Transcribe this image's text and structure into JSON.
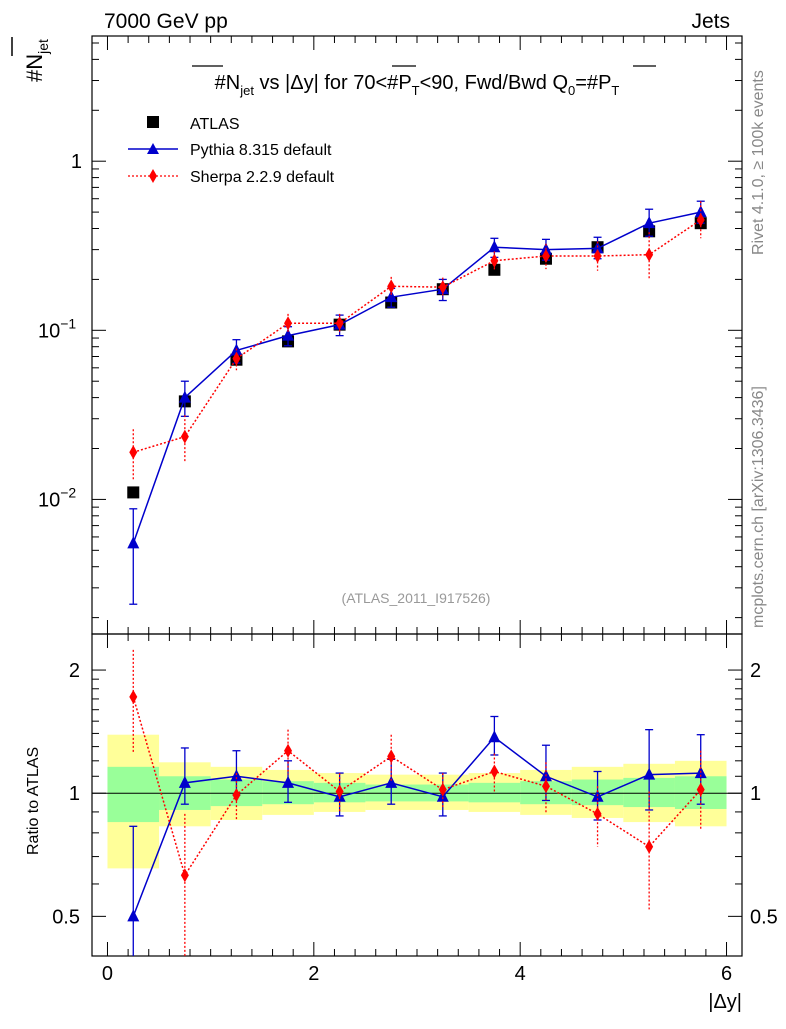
{
  "header": {
    "energy": "7000 GeV pp",
    "process": "Jets"
  },
  "side_labels": {
    "rivet": "Rivet 4.1.0, ≥ 100k events",
    "mcplots": "mcplots.cern.ch [arXiv:1306.3436]"
  },
  "watermark": "(ATLAS_2011_I917526)",
  "chart_data": [
    {
      "type": "scatter",
      "panel": "main",
      "title": "#N_jet vs |Δy| for 70<#P_T<90, Fwd/Bwd Q_0=#P_T",
      "title_parts": {
        "a": "#",
        "b": "N",
        "c": "jet",
        "d": " vs |Δy| for 70<#",
        "e": "P",
        "f": "T",
        "g": "<90, Fwd/Bwd Q",
        "h": "0",
        "i": "=#",
        "j": "P",
        "k": "T"
      },
      "ylabel": {
        "prefix": "#",
        "main": "N",
        "sub": "jet"
      },
      "yscale": "log",
      "ylim": [
        0.0016,
        5.5
      ],
      "xlim": [
        -0.15,
        6.15
      ],
      "yticks": [
        {
          "value": 0.01,
          "base": "10",
          "exp": "−2"
        },
        {
          "value": 0.1,
          "base": "10",
          "exp": "−1"
        },
        {
          "value": 1,
          "base": "1",
          "exp": ""
        }
      ],
      "legend_position": "top-left",
      "x": [
        0.25,
        0.75,
        1.25,
        1.75,
        2.25,
        2.75,
        3.25,
        3.75,
        4.25,
        4.75,
        5.25,
        5.75
      ],
      "series": [
        {
          "name": "ATLAS",
          "color": "#000000",
          "marker": "square",
          "values": [
            0.011,
            0.038,
            0.067,
            0.086,
            0.108,
            0.146,
            0.175,
            0.228,
            0.265,
            0.31,
            0.385,
            0.43
          ],
          "err_lo": [
            0,
            0,
            0,
            0,
            0,
            0,
            0,
            0,
            0,
            0,
            0,
            0
          ],
          "err_hi": [
            0,
            0,
            0,
            0,
            0,
            0,
            0,
            0,
            0,
            0,
            0,
            0
          ]
        },
        {
          "name": "Pythia 8.315 default",
          "color": "#0000cc",
          "marker": "triangle",
          "line": "solid",
          "values": [
            0.0055,
            0.04,
            0.076,
            0.093,
            0.108,
            0.157,
            0.175,
            0.31,
            0.3,
            0.305,
            0.43,
            0.5
          ],
          "err_lo": [
            0.0031,
            0.009,
            0.012,
            0.012,
            0.015,
            0.02,
            0.025,
            0.04,
            0.04,
            0.04,
            0.07,
            0.07
          ],
          "err_hi": [
            0.0033,
            0.01,
            0.012,
            0.012,
            0.015,
            0.02,
            0.025,
            0.04,
            0.045,
            0.05,
            0.09,
            0.08
          ]
        },
        {
          "name": "Sherpa 2.2.9 default",
          "color": "#ff0000",
          "marker": "diamond",
          "line": "dotted",
          "values": [
            0.019,
            0.0235,
            0.068,
            0.11,
            0.11,
            0.182,
            0.18,
            0.258,
            0.275,
            0.275,
            0.28,
            0.45
          ],
          "err_lo": [
            0.006,
            0.007,
            0.01,
            0.015,
            0.015,
            0.025,
            0.025,
            0.035,
            0.045,
            0.05,
            0.08,
            0.1
          ],
          "err_hi": [
            0.007,
            0.008,
            0.01,
            0.015,
            0.015,
            0.025,
            0.025,
            0.035,
            0.05,
            0.06,
            0.1,
            0.13
          ]
        }
      ]
    },
    {
      "type": "scatter",
      "panel": "ratio",
      "ylabel": "Ratio to ATLAS",
      "xlabel": "|Δy|",
      "yscale": "log",
      "ylim": [
        0.4,
        2.45
      ],
      "xlim": [
        -0.15,
        6.15
      ],
      "yticks": [
        0.5,
        1,
        2
      ],
      "ytick_labels": [
        "0.5",
        "1",
        "2"
      ],
      "xticks": [
        0,
        2,
        4,
        6
      ],
      "xtick_labels": [
        "0",
        "2",
        "4",
        "6"
      ],
      "x": [
        0.25,
        0.75,
        1.25,
        1.75,
        2.25,
        2.75,
        3.25,
        3.75,
        4.25,
        4.75,
        5.25,
        5.75
      ],
      "bands": {
        "bins": [
          [
            0,
            0.5
          ],
          [
            0.5,
            1
          ],
          [
            1,
            1.5
          ],
          [
            1.5,
            2
          ],
          [
            2,
            2.5
          ],
          [
            2.5,
            3
          ],
          [
            3,
            3.5
          ],
          [
            3.5,
            4
          ],
          [
            4,
            4.5
          ],
          [
            4.5,
            5
          ],
          [
            5,
            5.5
          ],
          [
            5.5,
            6
          ]
        ],
        "outer": {
          "color": "#ffff99",
          "lo": [
            0.655,
            0.83,
            0.86,
            0.885,
            0.9,
            0.91,
            0.91,
            0.9,
            0.885,
            0.87,
            0.85,
            0.83
          ],
          "hi": [
            1.39,
            1.19,
            1.16,
            1.14,
            1.12,
            1.11,
            1.11,
            1.12,
            1.14,
            1.16,
            1.18,
            1.2
          ]
        },
        "inner": {
          "color": "#99ff99",
          "lo": [
            0.85,
            0.91,
            0.93,
            0.94,
            0.95,
            0.955,
            0.955,
            0.95,
            0.94,
            0.935,
            0.925,
            0.915
          ],
          "hi": [
            1.16,
            1.1,
            1.08,
            1.07,
            1.06,
            1.05,
            1.05,
            1.06,
            1.07,
            1.08,
            1.09,
            1.1
          ]
        }
      },
      "series": [
        {
          "name": "Pythia 8.315 default",
          "color": "#0000cc",
          "marker": "triangle",
          "line": "solid",
          "values": [
            0.5,
            1.06,
            1.1,
            1.06,
            0.98,
            1.06,
            0.98,
            1.37,
            1.1,
            0.98,
            1.11,
            1.12
          ],
          "err_lo": [
            0.13,
            0.12,
            0.11,
            0.11,
            0.1,
            0.12,
            0.1,
            0.13,
            0.14,
            0.12,
            0.2,
            0.18
          ],
          "err_hi": [
            0.33,
            0.23,
            0.17,
            0.14,
            0.14,
            0.15,
            0.14,
            0.17,
            0.21,
            0.15,
            0.32,
            0.27
          ]
        },
        {
          "name": "Sherpa 2.2.9 default",
          "color": "#ff0000",
          "marker": "diamond",
          "line": "dotted",
          "values": [
            1.72,
            0.63,
            0.99,
            1.27,
            1.01,
            1.23,
            1.02,
            1.13,
            1.04,
            0.89,
            0.74,
            1.02
          ],
          "err_lo": [
            0.46,
            0.23,
            0.13,
            0.16,
            0.11,
            0.16,
            0.1,
            0.12,
            0.15,
            0.15,
            0.22,
            0.21
          ],
          "err_hi": [
            0.52,
            0.26,
            0.13,
            0.16,
            0.11,
            0.16,
            0.1,
            0.12,
            0.15,
            0.15,
            0.27,
            0.25
          ]
        }
      ]
    }
  ]
}
